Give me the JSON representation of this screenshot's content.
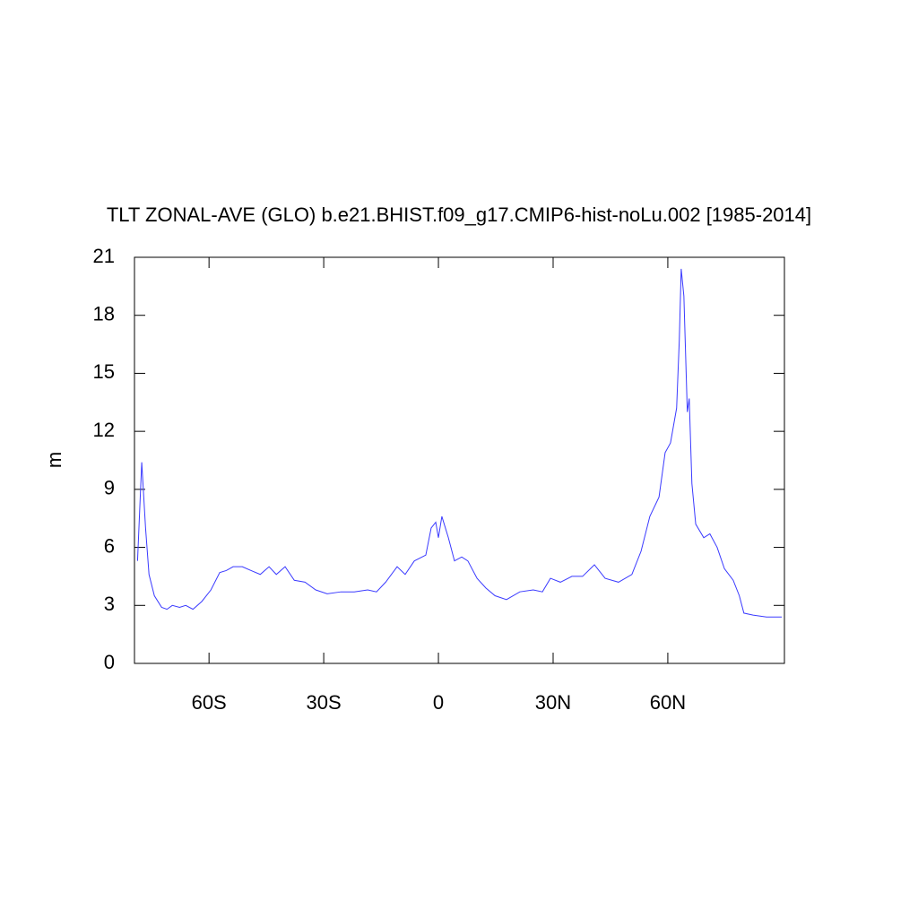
{
  "chart_data": {
    "type": "line",
    "title": "TLT ZONAL-AVE (GLO) b.e21.BHIST.f09_g17.CMIP6-hist-noLu.002 [1985-2014]",
    "y_label": "m",
    "x": [
      -78.7,
      -77.6,
      -76.6,
      -75.7,
      -74.3,
      -72.4,
      -71,
      -69.6,
      -67.7,
      -66.1,
      -64.2,
      -61.9,
      -59.5,
      -57.2,
      -55.5,
      -53.7,
      -51.3,
      -49,
      -46.6,
      -44.3,
      -42.4,
      -40.1,
      -37.7,
      -34.9,
      -32.1,
      -29.1,
      -25.5,
      -22,
      -18.5,
      -16.2,
      -13.8,
      -10.8,
      -8.7,
      -6.3,
      -3.3,
      -1.9,
      -0.7,
      0,
      0.9,
      2.6,
      4.2,
      6.1,
      7.7,
      10.1,
      12.4,
      14.8,
      17.8,
      21.3,
      24.8,
      27.2,
      29.3,
      31.9,
      34.9,
      37.7,
      40.8,
      43.6,
      47.1,
      50.6,
      53,
      55.3,
      57.7,
      59.3,
      60.7,
      62.3,
      63,
      63.5,
      64.2,
      65.1,
      65.6,
      66.3,
      67.3,
      69.4,
      71,
      72.9,
      74.8,
      77.1,
      78.7,
      79.9,
      82.3,
      85.8,
      89.8
    ],
    "series": [
      {
        "color": "#3a3aff",
        "values": [
          5.3,
          10.4,
          7.0,
          4.6,
          3.5,
          2.9,
          2.8,
          3.0,
          2.9,
          3.0,
          2.8,
          3.2,
          3.8,
          4.7,
          4.8,
          5.0,
          5.0,
          4.8,
          4.6,
          5.0,
          4.6,
          5.0,
          4.3,
          4.2,
          3.8,
          3.6,
          3.7,
          3.7,
          3.8,
          3.7,
          4.2,
          5.0,
          4.6,
          5.3,
          5.6,
          7.0,
          7.3,
          6.5,
          7.6,
          6.5,
          5.3,
          5.5,
          5.3,
          4.4,
          3.9,
          3.5,
          3.3,
          3.7,
          3.8,
          3.7,
          4.4,
          4.2,
          4.5,
          4.5,
          5.1,
          4.4,
          4.2,
          4.6,
          5.8,
          7.6,
          8.6,
          10.9,
          11.4,
          13.2,
          16.7,
          20.4,
          19.0,
          13.0,
          13.7,
          9.3,
          7.2,
          6.5,
          6.7,
          6.0,
          4.9,
          4.3,
          3.5,
          2.6,
          2.5,
          2.4,
          2.4
        ]
      }
    ],
    "xlim": [
      -79.5,
      90.5
    ],
    "xticks": [
      {
        "value": -60,
        "label": "60S"
      },
      {
        "value": -30,
        "label": "30S"
      },
      0,
      {
        "value": 30,
        "label": "30N"
      },
      {
        "value": 60,
        "label": "60N"
      }
    ],
    "ylim": [
      0,
      21
    ],
    "yticks": [
      0,
      3,
      6,
      9,
      12,
      15,
      18,
      21
    ]
  }
}
